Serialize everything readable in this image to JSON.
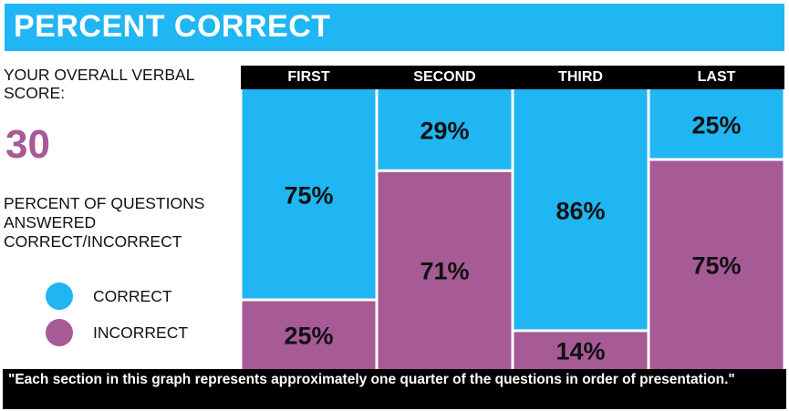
{
  "banner": {
    "title": "PERCENT CORRECT"
  },
  "score": {
    "label": "YOUR OVERALL VERBAL SCORE:",
    "value": "30"
  },
  "description": "PERCENT OF QUESTIONS ANSWERED CORRECT/INCORRECT",
  "legend": [
    {
      "label": "CORRECT",
      "color": "#1fb6f3"
    },
    {
      "label": "INCORRECT",
      "color": "#a65a96"
    }
  ],
  "chart_data": {
    "type": "bar",
    "stacked": true,
    "categories": [
      "FIRST",
      "SECOND",
      "THIRD",
      "LAST"
    ],
    "series": [
      {
        "name": "CORRECT",
        "color": "#1fb6f3",
        "values": [
          75,
          29,
          86,
          25
        ],
        "labels": [
          "75%",
          "29%",
          "86%",
          "25%"
        ]
      },
      {
        "name": "INCORRECT",
        "color": "#a65a96",
        "values": [
          25,
          71,
          14,
          75
        ],
        "labels": [
          "25%",
          "71%",
          "14%",
          "75%"
        ]
      }
    ],
    "ylim": [
      0,
      100
    ],
    "grid": false,
    "legend_position": "left"
  },
  "footnote": "\"Each section in this graph represents approximately one quarter of the questions in order of presentation.\""
}
